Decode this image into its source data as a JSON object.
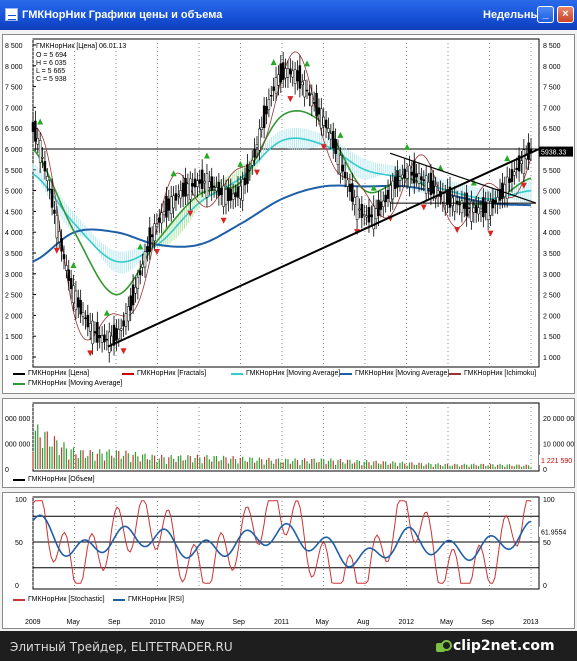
{
  "window": {
    "title": "ГМКНорНик Графики цены и объема",
    "period": "Недельный",
    "minimize_glyph": "_",
    "maximize_glyph": "□",
    "close_glyph": "×"
  },
  "info_box": {
    "header": "ГМКНорНик [Цена] 06.01.13",
    "lines": [
      "O = 5 694",
      "H = 6 035",
      "L = 5 665",
      "C = 5 938"
    ]
  },
  "price_chart": {
    "y_ticks": [
      "8 500",
      "8 000",
      "7 500",
      "7 000",
      "6 500",
      "6 000",
      "5 500",
      "5 000",
      "4 500",
      "4 000",
      "3 500",
      "3 000",
      "2 500",
      "2 000",
      "1 500",
      "1 000"
    ],
    "current_price_label": "5938.33",
    "legend": [
      {
        "label": "ГМКНорНик [Цена]",
        "color": "#000000"
      },
      {
        "label": "ГМКНорНик [Fractals]",
        "color": "#cc0000"
      },
      {
        "label": "ГМКНорНик [Moving Average]",
        "color": "#33cccc"
      },
      {
        "label": "ГМКНорНик [Moving Average]",
        "color": "#1f5fa8"
      },
      {
        "label": "ГМКНорНик [Ichimoku]",
        "color": "#993333"
      },
      {
        "label": "ГМКНорНик [Moving Average]",
        "color": "#339933"
      }
    ]
  },
  "volume_chart": {
    "y_ticks_left": [
      "000 000",
      "000 000",
      "0"
    ],
    "y_ticks_right": [
      "20 000 000",
      "10 000 000",
      "0"
    ],
    "current_volume_label": "1 221 590",
    "legend": [
      {
        "label": "ГМКНорНик [Объем]",
        "color": "#000000"
      }
    ]
  },
  "oscillator_chart": {
    "y_ticks_left": [
      "100",
      "50",
      "0"
    ],
    "y_ticks_right": [
      "100",
      "50",
      "0"
    ],
    "current_label": "61.9554",
    "legend": [
      {
        "label": "ГМКНорНик [Stochastic]",
        "color": "#cc3333"
      },
      {
        "label": "ГМКНорНик [RSI]",
        "color": "#1f5fa8"
      }
    ]
  },
  "time_axis": [
    "2009",
    "May",
    "Sep",
    "2010",
    "May",
    "Sep",
    "2011",
    "May",
    "Aug",
    "2012",
    "May",
    "Sep",
    "2013"
  ],
  "chart_data": {
    "type": "line",
    "title": "ГМКНорНик Графики цены и объема",
    "ylim": [
      1000,
      8500
    ],
    "x": [
      "2009",
      "May",
      "Sep",
      "2010",
      "May",
      "Sep",
      "2011",
      "May",
      "Aug",
      "2012",
      "May",
      "Sep",
      "2013"
    ],
    "series": [
      {
        "name": "ГМКНорНик [Цена]",
        "values": [
          6500,
          2500,
          1500,
          4200,
          5200,
          5000,
          7800,
          6700,
          4400,
          5400,
          4800,
          4600,
          5938
        ]
      },
      {
        "name": "ГМКНорНик [Moving Average]",
        "values": [
          5400,
          4200,
          3300,
          3700,
          4700,
          5300,
          6200,
          6100,
          5500,
          5300,
          5000,
          4800,
          5000
        ]
      },
      {
        "name": "ГМКНорНик [Moving Average]",
        "values": [
          3300,
          4000,
          4000,
          3700,
          3700,
          4200,
          4800,
          5100,
          5100,
          5100,
          4900,
          4700,
          4650
        ]
      },
      {
        "name": "ГМКНорНик [Moving Average]",
        "values": [
          6000,
          4000,
          2500,
          3800,
          4900,
          5200,
          6800,
          6600,
          5000,
          5300,
          4800,
          4700,
          5300
        ]
      }
    ],
    "volume": [
      13000000,
      6000000,
      5500000,
      4000000,
      4000000,
      3500000,
      3000000,
      3000000,
      2500000,
      2000000,
      1500000,
      1500000,
      1221590
    ],
    "oscillators": [
      {
        "name": "ГМКНорНик [Stochastic]",
        "values": [
          95,
          20,
          60,
          70,
          15,
          55,
          90,
          20,
          10,
          85,
          15,
          25,
          95
        ]
      },
      {
        "name": "ГМКНорНик [RSI]",
        "values": [
          75,
          40,
          55,
          55,
          40,
          50,
          60,
          45,
          30,
          55,
          40,
          45,
          62
        ]
      }
    ]
  }
}
